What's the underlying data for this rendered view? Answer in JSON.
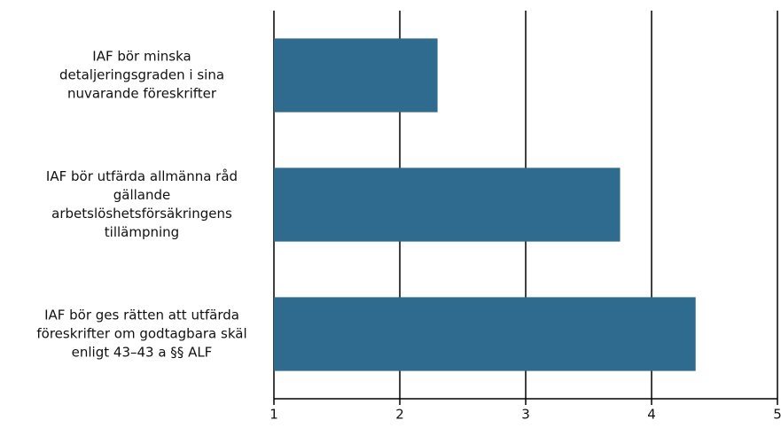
{
  "chart_data": {
    "type": "bar",
    "orientation": "horizontal",
    "categories": [
      [
        "IAF bör minska",
        "detaljeringsgraden i sina",
        "nuvarande föreskrifter"
      ],
      [
        "IAF bör utfärda allmänna råd",
        "gällande",
        "arbetslöshetsförsäkringens",
        "tillämpning"
      ],
      [
        "IAF bör ges rätten att utfärda",
        "föreskrifter om godtagbara skäl",
        "enligt 43–43 a §§ ALF"
      ]
    ],
    "values": [
      2.3,
      3.75,
      4.35
    ],
    "color": "#2e6b8f",
    "xlim": [
      1,
      5
    ],
    "xticks": [
      1,
      2,
      3,
      4,
      5
    ],
    "grid": true
  }
}
